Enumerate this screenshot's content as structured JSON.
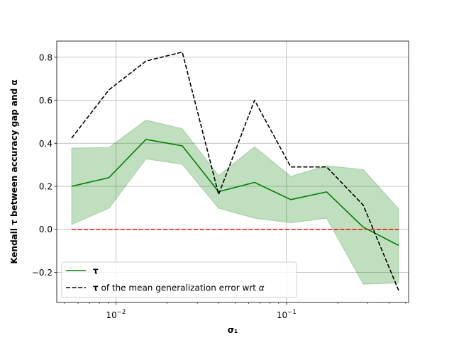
{
  "chart_data": {
    "type": "line",
    "title": "",
    "xlabel": "σ₁",
    "ylabel": "Kendall τ between accuracy gap and α",
    "xscale": "log",
    "xlim": [
      0.0045,
      0.52
    ],
    "ylim": [
      -0.34,
      0.875
    ],
    "grid": true,
    "legend_position": "lower-left",
    "x": [
      0.0055,
      0.0091,
      0.015,
      0.0245,
      0.04,
      0.065,
      0.106,
      0.172,
      0.282,
      0.455
    ],
    "x_ticks": [
      {
        "value": 0.01,
        "base": "10",
        "exp": "−2"
      },
      {
        "value": 0.1,
        "base": "10",
        "exp": "−1"
      }
    ],
    "y_ticks": [
      {
        "value": -0.2,
        "label": "−0.2"
      },
      {
        "value": 0.0,
        "label": "0.0"
      },
      {
        "value": 0.2,
        "label": "0.2"
      },
      {
        "value": 0.4,
        "label": "0.4"
      },
      {
        "value": 0.6,
        "label": "0.6"
      },
      {
        "value": 0.8,
        "label": "0.8"
      }
    ],
    "series": [
      {
        "name": "τ",
        "style": "solid",
        "color": "#008000",
        "values": [
          0.2,
          0.24,
          0.418,
          0.388,
          0.175,
          0.218,
          0.138,
          0.174,
          0.01,
          -0.075
        ],
        "band_lower": [
          0.022,
          0.098,
          0.327,
          0.302,
          0.098,
          0.052,
          0.03,
          0.052,
          -0.255,
          -0.25
        ],
        "band_upper": [
          0.378,
          0.38,
          0.508,
          0.468,
          0.25,
          0.384,
          0.246,
          0.296,
          0.278,
          0.095
        ],
        "band_color": "#008000"
      },
      {
        "name": "τ of the mean generalization error wrt α",
        "style": "dashed",
        "color": "#000000",
        "values": [
          0.424,
          0.648,
          0.782,
          0.824,
          0.162,
          0.6,
          0.29,
          0.29,
          0.112,
          -0.285
        ]
      },
      {
        "style": "dashed",
        "color": "#ff0000",
        "values": [
          0.0,
          0.0,
          0.0,
          0.0,
          0.0,
          0.0,
          0.0,
          0.0,
          0.0,
          0.0
        ]
      }
    ],
    "legend": [
      {
        "label": "τ",
        "series": 0
      },
      {
        "label_prefix": "τ",
        "label_rest": " of the mean generalization error wrt ",
        "label_italic": "α",
        "series": 1
      }
    ]
  }
}
